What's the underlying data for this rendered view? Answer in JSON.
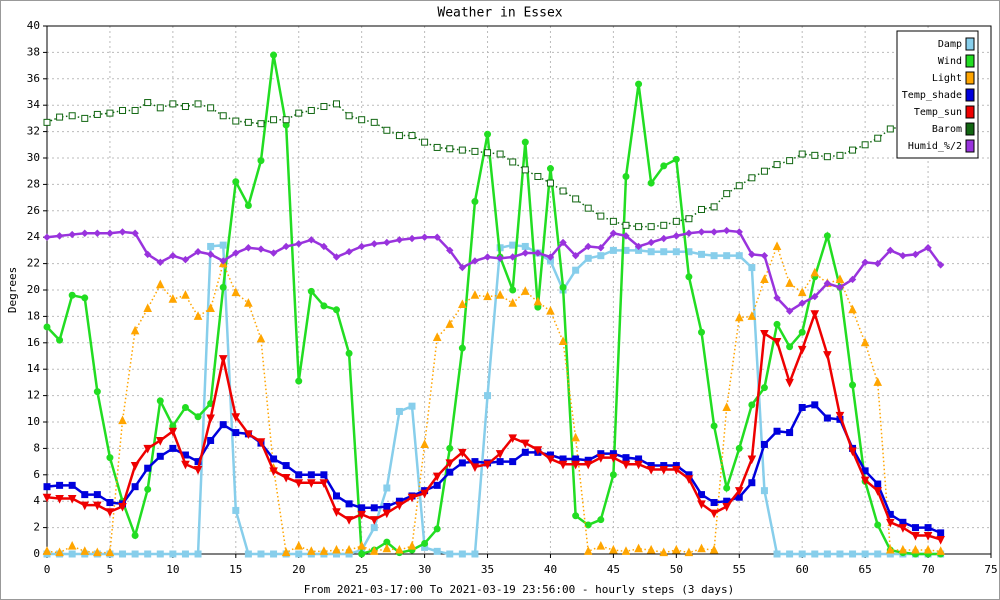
{
  "chart_data": {
    "type": "line",
    "title": "Weather in Essex",
    "y_label": "Degrees",
    "x_label": "From 2021-03-17:00 To 2021-03-19 23:56:00 - hourly steps (3 days)",
    "x": [
      0,
      1,
      2,
      3,
      4,
      5,
      6,
      7,
      8,
      9,
      10,
      11,
      12,
      13,
      14,
      15,
      16,
      17,
      18,
      19,
      20,
      21,
      22,
      23,
      24,
      25,
      26,
      27,
      28,
      29,
      30,
      31,
      32,
      33,
      34,
      35,
      36,
      37,
      38,
      39,
      40,
      41,
      42,
      43,
      44,
      45,
      46,
      47,
      48,
      49,
      50,
      51,
      52,
      53,
      54,
      55,
      56,
      57,
      58,
      59,
      60,
      61,
      62,
      63,
      64,
      65,
      66,
      67,
      68,
      69,
      70,
      71
    ],
    "xlim": [
      0,
      75
    ],
    "xticks": [
      0,
      5,
      10,
      15,
      20,
      25,
      30,
      35,
      40,
      45,
      50,
      55,
      60,
      65,
      70,
      75
    ],
    "ylim": [
      0,
      40
    ],
    "yticks": [
      0,
      2,
      4,
      6,
      8,
      10,
      12,
      14,
      16,
      18,
      20,
      22,
      24,
      26,
      28,
      30,
      32,
      34,
      36,
      38,
      40
    ],
    "grid": true,
    "legend": "upper right",
    "series": [
      {
        "name": "Damp",
        "color": "#87ceeb",
        "marker": "square",
        "linestyle": "solid",
        "values": [
          0,
          0,
          0,
          0,
          0,
          0,
          0,
          0,
          0,
          0,
          0,
          0,
          0,
          23.3,
          23.4,
          3.3,
          0,
          0,
          0,
          0,
          0,
          0,
          0,
          0,
          0,
          0.3,
          2,
          5,
          10.8,
          11.2,
          0.5,
          0.2,
          0,
          0,
          0,
          12,
          23.2,
          23.4,
          23.3,
          22.8,
          22.2,
          20,
          21.5,
          22.4,
          22.6,
          23,
          23,
          23,
          22.9,
          22.9,
          22.9,
          22.9,
          22.7,
          22.6,
          22.6,
          22.6,
          21.7,
          4.8,
          0,
          0,
          0,
          0,
          0,
          0,
          0,
          0,
          0,
          0,
          0,
          0,
          0,
          0
        ]
      },
      {
        "name": "Wind",
        "color": "#22dd22",
        "marker": "circle",
        "linestyle": "solid",
        "values": [
          17.2,
          16.2,
          19.6,
          19.4,
          12.3,
          7.3,
          4,
          1.4,
          4.9,
          11.6,
          9.7,
          11.1,
          10.4,
          11.4,
          20.2,
          28.2,
          26.4,
          29.8,
          37.8,
          32.5,
          13.1,
          19.9,
          18.8,
          18.5,
          15.2,
          0,
          0.3,
          0.9,
          0.1,
          0.3,
          0.8,
          1.9,
          8,
          15.6,
          26.7,
          31.8,
          22.5,
          20,
          31.2,
          18.7,
          29.2,
          20.2,
          2.9,
          2.2,
          2.6,
          6,
          28.6,
          35.6,
          28.1,
          29.4,
          29.9,
          21,
          16.8,
          9.7,
          5,
          8,
          11.3,
          12.6,
          17.4,
          15.7,
          16.8,
          21,
          24.1,
          20.2,
          12.8,
          5.5,
          2.2,
          0.3,
          0.1,
          0,
          0,
          0
        ]
      },
      {
        "name": "Light",
        "color": "#ffa500",
        "marker": "triangle-up",
        "linestyle": "dotted",
        "values": [
          0.2,
          0.1,
          0.6,
          0.2,
          0.1,
          0.1,
          10.1,
          16.9,
          18.6,
          20.4,
          19.3,
          19.6,
          18,
          18.6,
          22,
          19.8,
          19,
          16.3,
          6.5,
          0.1,
          0.6,
          0.2,
          0.2,
          0.3,
          0.3,
          0.6,
          0.2,
          0.4,
          0.3,
          0.6,
          8.3,
          16.4,
          17.4,
          18.9,
          19.6,
          19.5,
          19.6,
          19,
          19.9,
          19.1,
          18.4,
          16.1,
          8.8,
          0.2,
          0.6,
          0.3,
          0.2,
          0.4,
          0.3,
          0.1,
          0.3,
          0.1,
          0.4,
          0.3,
          11.1,
          17.9,
          18,
          20.8,
          23.3,
          20.5,
          19.8,
          21.3,
          20.5,
          20.8,
          18.5,
          16,
          13,
          0.3,
          0.3,
          0.3,
          0.3,
          0.2
        ]
      },
      {
        "name": "Temp_shade",
        "color": "#0000dd",
        "marker": "square",
        "linestyle": "solid",
        "values": [
          5.1,
          5.2,
          5.2,
          4.5,
          4.5,
          3.9,
          3.8,
          5.1,
          6.5,
          7.4,
          8,
          7.5,
          7,
          8.6,
          9.8,
          9.2,
          9.1,
          8.4,
          7.2,
          6.7,
          6,
          6,
          6,
          4.4,
          3.8,
          3.5,
          3.5,
          3.6,
          4,
          4.4,
          4.8,
          5.2,
          6.2,
          6.9,
          7,
          6.9,
          7,
          7,
          7.7,
          7.7,
          7.5,
          7.2,
          7.2,
          7.1,
          7.6,
          7.6,
          7.3,
          7.2,
          6.7,
          6.7,
          6.7,
          6,
          4.5,
          3.9,
          4,
          4.3,
          5.4,
          8.3,
          9.3,
          9.2,
          11.1,
          11.3,
          10.3,
          10.2,
          8,
          6.3,
          5.3,
          3,
          2.4,
          2,
          2,
          1.6
        ]
      },
      {
        "name": "Temp_sun",
        "color": "#ee0000",
        "marker": "triangle-down",
        "linestyle": "solid",
        "values": [
          4.3,
          4.2,
          4.2,
          3.7,
          3.7,
          3.2,
          3.6,
          6.7,
          8,
          8.6,
          9.3,
          6.8,
          6.4,
          10.3,
          14.8,
          10.4,
          9.1,
          8.5,
          6.3,
          5.8,
          5.4,
          5.4,
          5.4,
          3.2,
          2.6,
          3,
          2.6,
          3.1,
          3.7,
          4.3,
          4.6,
          5.9,
          6.9,
          7.7,
          6.6,
          6.8,
          7.6,
          8.8,
          8.4,
          7.9,
          7.2,
          6.8,
          6.8,
          6.8,
          7.3,
          7.3,
          6.8,
          6.8,
          6.4,
          6.4,
          6.4,
          5.7,
          3.8,
          3.1,
          3.6,
          4.8,
          7.2,
          16.7,
          16.1,
          13,
          15.5,
          18.2,
          15.1,
          10.5,
          7.8,
          5.6,
          4.8,
          2.4,
          2,
          1.4,
          1.4,
          1.1
        ]
      },
      {
        "name": "Barom",
        "color": "#116611",
        "marker": "open-square",
        "linestyle": "dotted",
        "values": [
          32.7,
          33.1,
          33.2,
          33,
          33.3,
          33.4,
          33.6,
          33.6,
          34.2,
          33.8,
          34.1,
          33.9,
          34.1,
          33.8,
          33.2,
          32.8,
          32.7,
          32.6,
          32.9,
          32.9,
          33.4,
          33.6,
          33.9,
          34.1,
          33.2,
          32.9,
          32.7,
          32.1,
          31.7,
          31.7,
          31.2,
          30.8,
          30.7,
          30.6,
          30.5,
          30.4,
          30.3,
          29.7,
          29.1,
          28.6,
          28.1,
          27.5,
          26.9,
          26.2,
          25.6,
          25.2,
          24.9,
          24.8,
          24.8,
          24.9,
          25.2,
          25.4,
          26.1,
          26.3,
          27.3,
          27.9,
          28.5,
          29,
          29.5,
          29.8,
          30.3,
          30.2,
          30.1,
          30.2,
          30.6,
          31,
          31.5,
          32.2,
          32.4,
          null,
          null,
          null
        ]
      },
      {
        "name": "Humid_%/2",
        "color": "#9933dd",
        "marker": "diamond",
        "linestyle": "solid",
        "values": [
          24,
          24.1,
          24.2,
          24.3,
          24.3,
          24.3,
          24.4,
          24.3,
          22.7,
          22.1,
          22.6,
          22.3,
          22.9,
          22.7,
          22.2,
          22.8,
          23.2,
          23.1,
          22.8,
          23.3,
          23.5,
          23.8,
          23.3,
          22.5,
          22.9,
          23.3,
          23.5,
          23.6,
          23.8,
          23.9,
          24,
          24,
          23,
          21.7,
          22.2,
          22.5,
          22.4,
          22.5,
          22.8,
          22.8,
          22.5,
          23.6,
          22.6,
          23.3,
          23.2,
          24.3,
          24.1,
          23.3,
          23.6,
          23.9,
          24.1,
          24.3,
          24.4,
          24.4,
          24.5,
          24.4,
          22.7,
          22.6,
          19.4,
          18.4,
          19,
          19.5,
          20.5,
          20.2,
          20.8,
          22.1,
          22,
          23,
          22.6,
          22.7,
          23.2,
          21.9
        ]
      }
    ]
  }
}
